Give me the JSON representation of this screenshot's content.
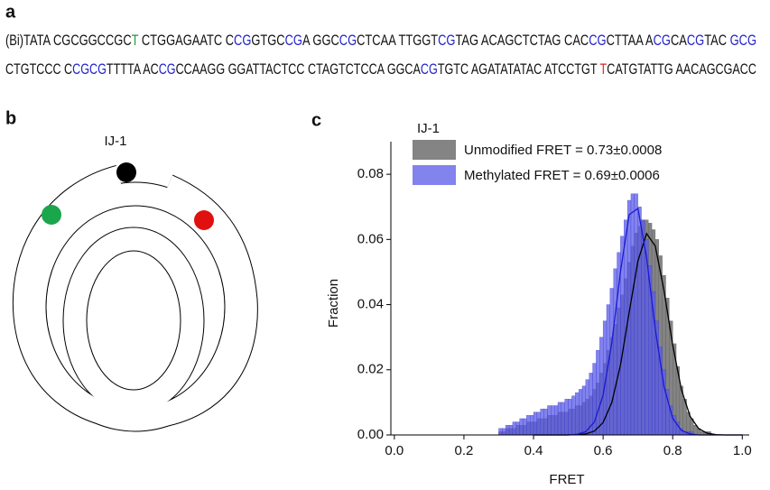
{
  "panel_a": {
    "label": "a",
    "lines": [
      [
        {
          "text": "(Bi)TATA CGCGGCCGC",
          "color": "#111111"
        },
        {
          "text": "T",
          "color": "#1a9a3a"
        },
        {
          "text": " CTGGAGAATC C",
          "color": "#111111"
        },
        {
          "text": "CG",
          "color": "#2222cc"
        },
        {
          "text": "GTGC",
          "color": "#111111"
        },
        {
          "text": "CG",
          "color": "#2222cc"
        },
        {
          "text": "A GGC",
          "color": "#111111"
        },
        {
          "text": "CG",
          "color": "#2222cc"
        },
        {
          "text": "CTCAA TTGGT",
          "color": "#111111"
        },
        {
          "text": "CG",
          "color": "#2222cc"
        },
        {
          "text": "TAG ACAGCTCTAG CAC",
          "color": "#111111"
        },
        {
          "text": "CG",
          "color": "#2222cc"
        },
        {
          "text": "CTTAA A",
          "color": "#111111"
        },
        {
          "text": "CG",
          "color": "#2222cc"
        },
        {
          "text": "CA",
          "color": "#111111"
        },
        {
          "text": "CG",
          "color": "#2222cc"
        },
        {
          "text": "TAC ",
          "color": "#111111"
        },
        {
          "text": "GCG",
          "color": "#2222cc"
        }
      ],
      [
        {
          "text": "CTGTCCC C",
          "color": "#111111"
        },
        {
          "text": "CGCG",
          "color": "#2222cc"
        },
        {
          "text": "TTTTA AC",
          "color": "#111111"
        },
        {
          "text": "CG",
          "color": "#2222cc"
        },
        {
          "text": "CCAAGG GGATTACTCC CTAGTCTCCA GGCA",
          "color": "#111111"
        },
        {
          "text": "CG",
          "color": "#2222cc"
        },
        {
          "text": "TGTC AGATATATAC ATCCTGT ",
          "color": "#111111"
        },
        {
          "text": "T",
          "color": "#dd2222"
        },
        {
          "text": "CATGTATTG AACAGCGACC",
          "color": "#111111"
        }
      ]
    ]
  },
  "panel_b": {
    "label": "b",
    "construct": "IJ-1"
  },
  "chart_data": {
    "type": "histogram",
    "panel_label": "c",
    "annotation": "IJ-1",
    "xlabel": "FRET",
    "ylabel": "Fraction",
    "xlim": [
      -0.01,
      1.02
    ],
    "ylim": [
      0,
      0.09
    ],
    "xticks": [
      {
        "value": 0,
        "label": "0.0"
      },
      {
        "value": 0.2,
        "label": "0.2"
      },
      {
        "value": 0.4,
        "label": "0.4"
      },
      {
        "value": 0.6,
        "label": "0.6"
      },
      {
        "value": 0.8,
        "label": "0.8"
      },
      {
        "value": 1,
        "label": "1.0"
      }
    ],
    "yticks": [
      {
        "value": 0,
        "label": "0.00"
      },
      {
        "value": 0.02,
        "label": "0.02"
      },
      {
        "value": 0.04,
        "label": "0.04"
      },
      {
        "value": 0.06,
        "label": "0.06"
      },
      {
        "value": 0.08,
        "label": "0.08"
      }
    ],
    "bins": [
      0.3,
      0.31,
      0.32,
      0.33,
      0.34,
      0.35,
      0.36,
      0.37,
      0.38,
      0.39,
      0.4,
      0.41,
      0.42,
      0.43,
      0.44,
      0.45,
      0.46,
      0.47,
      0.48,
      0.49,
      0.5,
      0.51,
      0.52,
      0.53,
      0.54,
      0.55,
      0.56,
      0.57,
      0.58,
      0.59,
      0.6,
      0.61,
      0.62,
      0.63,
      0.64,
      0.65,
      0.66,
      0.67,
      0.68,
      0.69,
      0.7,
      0.71,
      0.72,
      0.73,
      0.74,
      0.75,
      0.76,
      0.77,
      0.78,
      0.79,
      0.8,
      0.81,
      0.82,
      0.83,
      0.84,
      0.85,
      0.86,
      0.87,
      0.88,
      0.89,
      0.9,
      0.91,
      0.92,
      0.93,
      0.94,
      0.95,
      0.96,
      0.97,
      0.98
    ],
    "series": [
      {
        "name": "Unmodified FRET = 0.73±0.0008",
        "color": "#777777",
        "values": [
          0.001,
          0.001,
          0.002,
          0.002,
          0.002,
          0.003,
          0.003,
          0.003,
          0.004,
          0.004,
          0.004,
          0.005,
          0.005,
          0.005,
          0.006,
          0.006,
          0.006,
          0.007,
          0.007,
          0.007,
          0.008,
          0.008,
          0.009,
          0.009,
          0.01,
          0.011,
          0.012,
          0.014,
          0.016,
          0.019,
          0.022,
          0.026,
          0.03,
          0.034,
          0.039,
          0.043,
          0.048,
          0.053,
          0.058,
          0.062,
          0.064,
          0.066,
          0.066,
          0.065,
          0.063,
          0.06,
          0.055,
          0.049,
          0.042,
          0.035,
          0.028,
          0.021,
          0.015,
          0.011,
          0.007,
          0.005,
          0.003,
          0.002,
          0.001,
          0.001,
          0.001,
          0,
          0,
          0,
          0,
          0,
          0,
          0
        ]
      },
      {
        "name": "Methylated FRET = 0.69±0.0006",
        "color": "#5a5ae8",
        "values": [
          0.002,
          0.002,
          0.003,
          0.003,
          0.004,
          0.004,
          0.005,
          0.005,
          0.006,
          0.006,
          0.007,
          0.007,
          0.008,
          0.008,
          0.009,
          0.009,
          0.009,
          0.01,
          0.01,
          0.011,
          0.011,
          0.012,
          0.013,
          0.014,
          0.015,
          0.017,
          0.019,
          0.022,
          0.026,
          0.03,
          0.035,
          0.04,
          0.045,
          0.051,
          0.056,
          0.061,
          0.066,
          0.072,
          0.074,
          0.074,
          0.07,
          0.066,
          0.06,
          0.052,
          0.044,
          0.035,
          0.027,
          0.02,
          0.014,
          0.009,
          0.006,
          0.004,
          0.002,
          0.001,
          0.001,
          0.001,
          0,
          0,
          0,
          0,
          0,
          0,
          0,
          0,
          0,
          0,
          0,
          0
        ]
      }
    ],
    "fit_x": [
      0.4,
      0.425,
      0.45,
      0.475,
      0.5,
      0.525,
      0.55,
      0.575,
      0.6,
      0.625,
      0.65,
      0.675,
      0.7,
      0.725,
      0.75,
      0.775,
      0.8,
      0.825,
      0.85,
      0.875,
      0.9,
      0.925,
      0.95,
      0.975,
      1
    ],
    "fits": [
      {
        "color": "#000000",
        "values": [
          0,
          0,
          0,
          0,
          0,
          0.0001,
          0.0003,
          0.0012,
          0.0038,
          0.01,
          0.0215,
          0.0376,
          0.0534,
          0.0618,
          0.058,
          0.0443,
          0.0276,
          0.014,
          0.0057,
          0.0019,
          0.0005,
          0.0001,
          0,
          0,
          0
        ]
      },
      {
        "color": "#1a1ad0",
        "values": [
          0,
          0,
          0,
          0,
          0,
          0.0002,
          0.001,
          0.004,
          0.0122,
          0.0284,
          0.0502,
          0.0676,
          0.0695,
          0.0544,
          0.0325,
          0.0148,
          0.0051,
          0.0014,
          0.0003,
          0,
          0,
          0,
          0,
          0,
          0
        ]
      }
    ]
  }
}
